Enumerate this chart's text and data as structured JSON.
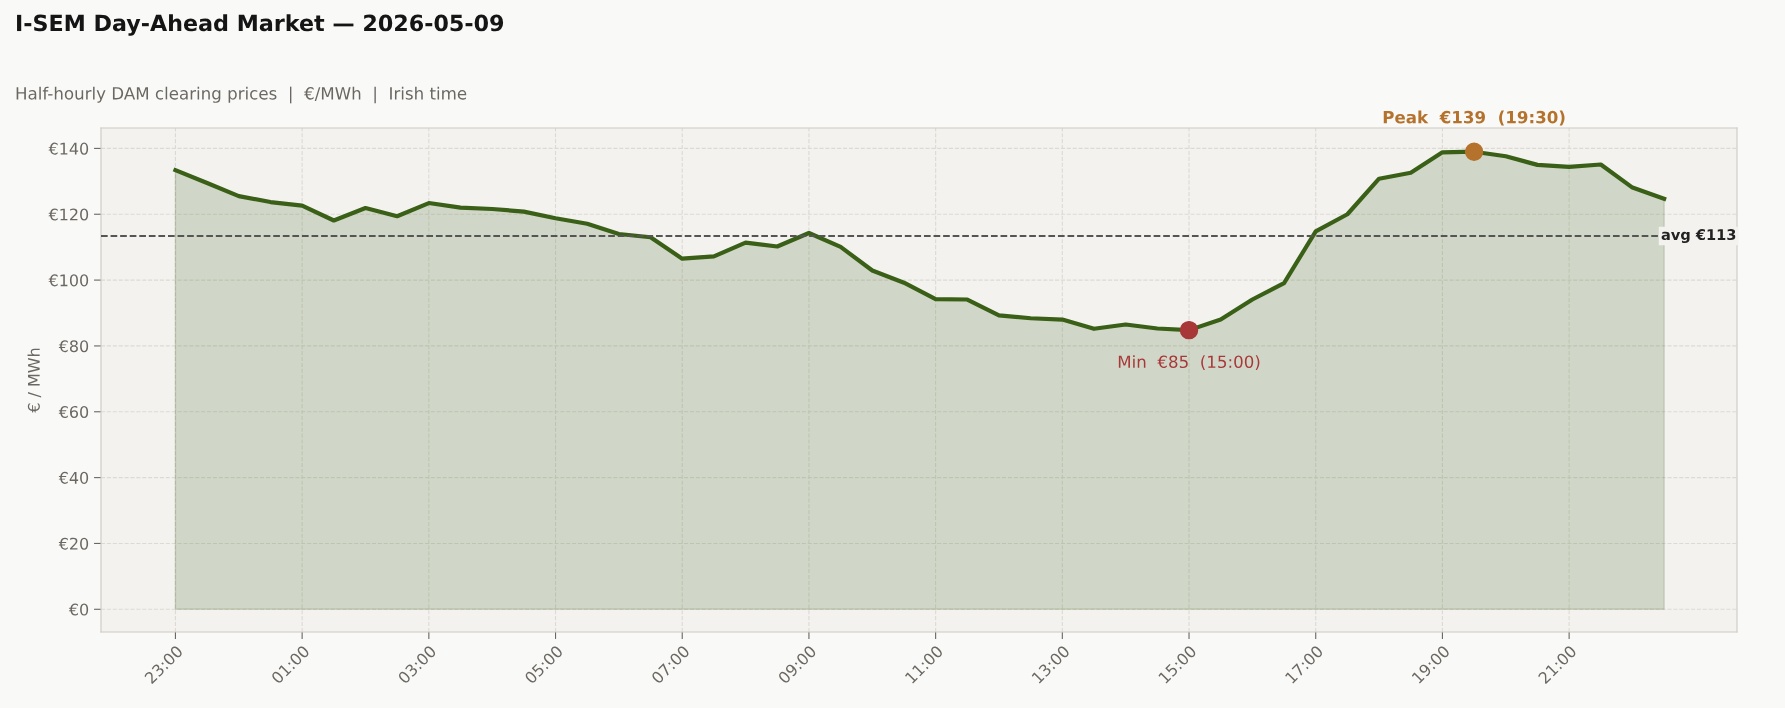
{
  "chart_data": {
    "type": "area",
    "title": "I-SEM Day-Ahead Market — 2026-05-09",
    "subtitle": "Half-hourly DAM clearing prices  |  €/MWh  |  Irish time",
    "ylabel": "€ / MWh",
    "categories": [
      "23:00",
      null,
      null,
      null,
      "01:00",
      null,
      null,
      null,
      "03:00",
      null,
      null,
      null,
      "05:00",
      null,
      null,
      null,
      "07:00",
      null,
      null,
      null,
      "09:00",
      null,
      null,
      null,
      "11:00",
      null,
      null,
      null,
      "13:00",
      null,
      null,
      null,
      "15:00",
      null,
      null,
      null,
      "17:00",
      null,
      null,
      null,
      "19:00",
      null,
      null,
      null,
      "21:00",
      null,
      null,
      null
    ],
    "series": [
      {
        "color": "#3a5f17",
        "values": [
          133.4,
          129.5,
          125.5,
          123.7,
          122.6,
          118.1,
          121.9,
          119.4,
          123.4,
          122.0,
          121.6,
          120.8,
          118.8,
          117.1,
          114.0,
          113.0,
          106.5,
          107.2,
          111.4,
          110.2,
          114.3,
          110.1,
          102.9,
          99.2,
          94.2,
          94.1,
          89.3,
          88.4,
          88.0,
          85.2,
          86.5,
          85.3,
          84.8,
          88.0,
          94.1,
          99.1,
          114.8,
          120.0,
          130.8,
          132.6,
          138.8,
          139.0,
          137.6,
          135.0,
          134.4,
          135.1,
          128.1,
          124.7
        ]
      },
      {
        "type": "scatter",
        "marker": "circle",
        "color": "#b5722d",
        "values": [
          null,
          null,
          null,
          null,
          null,
          null,
          null,
          null,
          null,
          null,
          null,
          null,
          null,
          null,
          null,
          null,
          null,
          null,
          null,
          null,
          null,
          null,
          null,
          null,
          null,
          null,
          null,
          null,
          null,
          null,
          null,
          null,
          null,
          null,
          null,
          null,
          null,
          null,
          null,
          null,
          null,
          139.0,
          null,
          null,
          null,
          null,
          null,
          null
        ]
      },
      {
        "type": "scatter",
        "marker": "circle",
        "color": "#a83838",
        "values": [
          null,
          null,
          null,
          null,
          null,
          null,
          null,
          null,
          null,
          null,
          null,
          null,
          null,
          null,
          null,
          null,
          null,
          null,
          null,
          null,
          null,
          null,
          null,
          null,
          null,
          null,
          null,
          null,
          null,
          null,
          null,
          null,
          84.8,
          null,
          null,
          null,
          null,
          null,
          null,
          null,
          null,
          null,
          null,
          null,
          null,
          null,
          null,
          null
        ]
      }
    ],
    "annotations": [
      "Peak  €139  (19:30)",
      "Min  €85  (15:00)"
    ],
    "ref_lines": [
      {
        "axis": "y",
        "value": 113.4,
        "label": "avg €113",
        "color": "#555555",
        "line_style": "dashed"
      }
    ],
    "ylim": [
      -6.9,
      146.2
    ],
    "yticks": [
      {
        "value": 0,
        "label": "€0"
      },
      {
        "value": 20,
        "label": "€20"
      },
      {
        "value": 40,
        "label": "€40"
      },
      {
        "value": 60,
        "label": "€60"
      },
      {
        "value": 80,
        "label": "€80"
      },
      {
        "value": 100,
        "label": "€100"
      },
      {
        "value": 120,
        "label": "€120"
      },
      {
        "value": 140,
        "label": "€140"
      }
    ],
    "grid": true,
    "marker": "none",
    "line_style": "solid"
  }
}
